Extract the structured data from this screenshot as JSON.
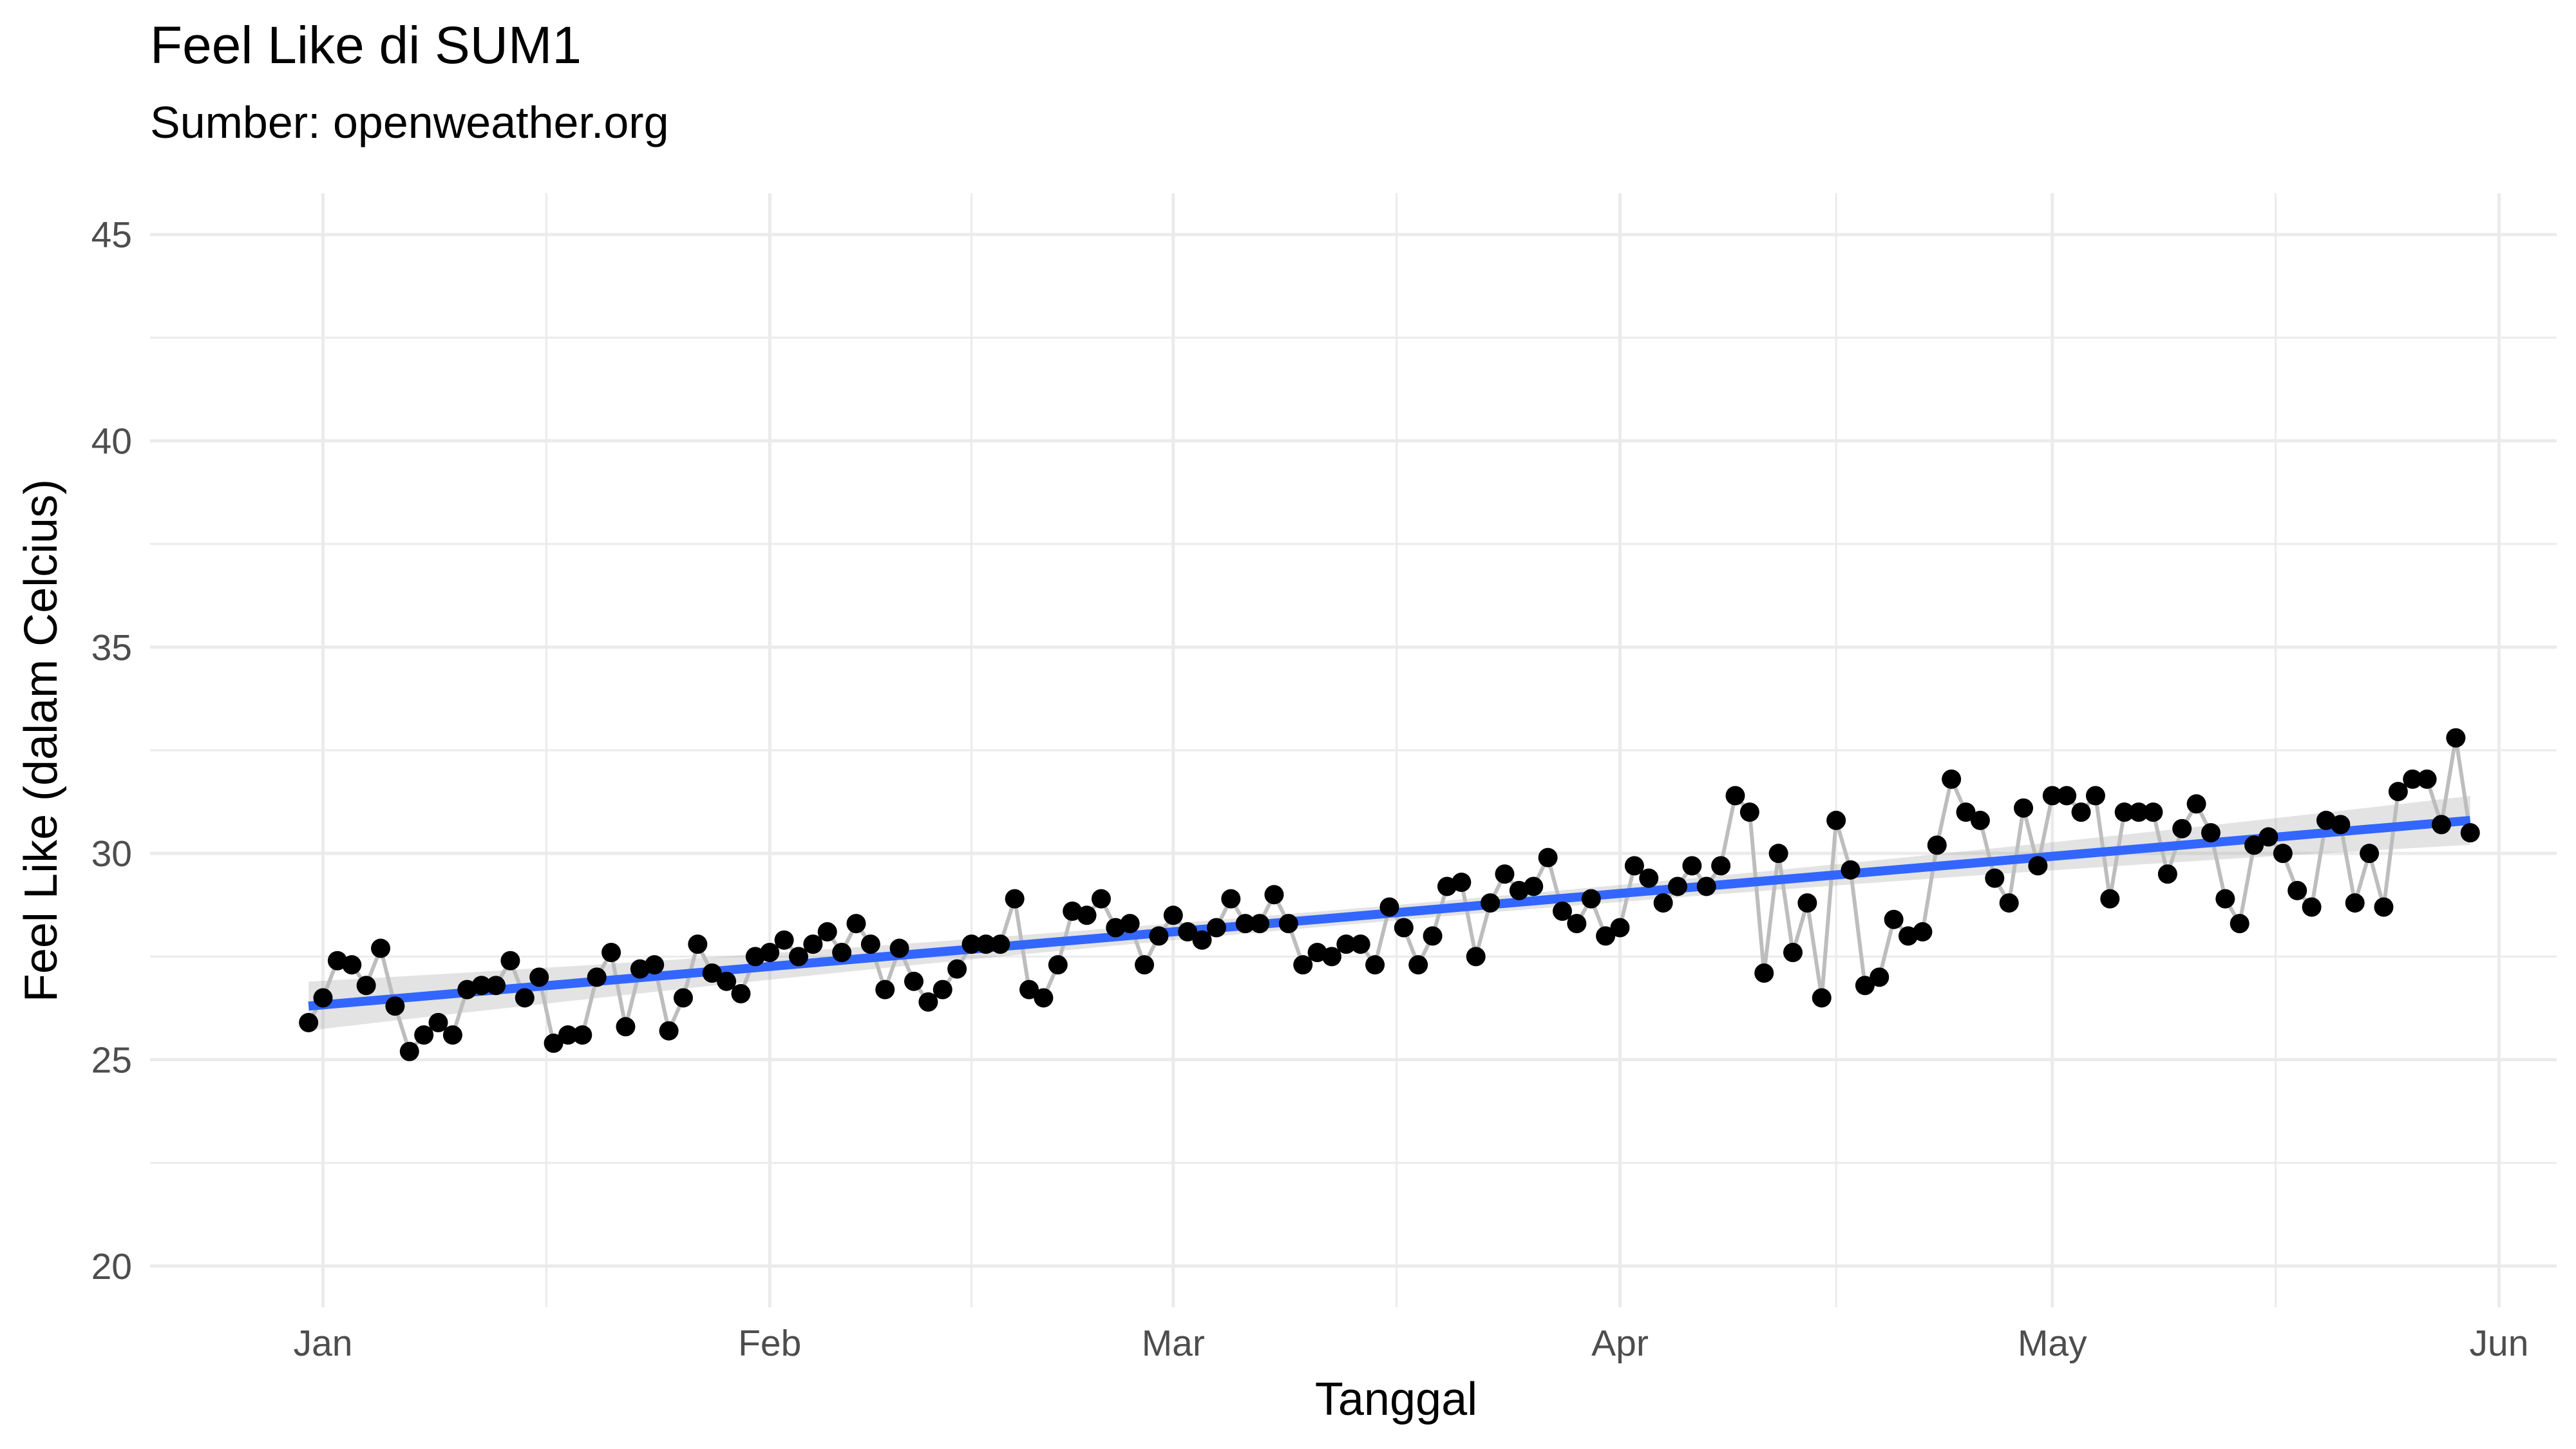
{
  "chart_data": {
    "type": "line",
    "title": "Feel Like di SUM1",
    "subtitle": "Sumber: openweather.org",
    "xlabel": "Tanggal",
    "ylabel": "Feel Like (dalam Celcius)",
    "x_start": "2022-12-31",
    "x_end": "2023-05-30",
    "xlim": [
      "2022-12-20",
      "2023-06-05"
    ],
    "ylim": [
      19,
      46
    ],
    "yticks": [
      20,
      25,
      30,
      35,
      40,
      45
    ],
    "xticks": [
      {
        "date": "2023-01-01",
        "label": "Jan"
      },
      {
        "date": "2023-02-01",
        "label": "Feb"
      },
      {
        "date": "2023-03-01",
        "label": "Mar"
      },
      {
        "date": "2023-04-01",
        "label": "Apr"
      },
      {
        "date": "2023-05-01",
        "label": "May"
      },
      {
        "date": "2023-06-01",
        "label": "Jun"
      }
    ],
    "grid": true,
    "series": [
      {
        "values": [
          25.9,
          26.5,
          27.4,
          27.3,
          26.8,
          27.7,
          26.3,
          25.2,
          25.6,
          25.9,
          25.6,
          26.7,
          26.8,
          26.8,
          27.4,
          26.5,
          27.0,
          25.4,
          25.6,
          25.6,
          27.0,
          27.6,
          25.8,
          27.2,
          27.3,
          25.7,
          26.5,
          27.8,
          27.1,
          26.9,
          26.6,
          27.5,
          27.6,
          27.9,
          27.5,
          27.8,
          28.1,
          27.6,
          28.3,
          27.8,
          26.7,
          27.7,
          26.9,
          26.4,
          26.7,
          27.2,
          27.8,
          27.8,
          27.8,
          28.9,
          26.7,
          26.5,
          27.3,
          28.6,
          28.5,
          28.9,
          28.2,
          28.3,
          27.3,
          28.0,
          28.5,
          28.1,
          27.9,
          28.2,
          28.9,
          28.3,
          28.3,
          29.0,
          28.3,
          27.3,
          27.6,
          27.5,
          27.8,
          27.8,
          27.3,
          28.7,
          28.2,
          27.3,
          28.0,
          29.2,
          29.3,
          27.5,
          28.8,
          29.5,
          29.1,
          29.2,
          29.9,
          28.6,
          28.3,
          28.9,
          28.0,
          28.2,
          29.7,
          29.4,
          28.8,
          29.2,
          29.7,
          29.2,
          29.7,
          31.4,
          31.0,
          27.1,
          30.0,
          27.6,
          28.8,
          26.5,
          30.8,
          29.6,
          26.8,
          27.0,
          28.4,
          28.0,
          28.1,
          30.2,
          31.8,
          31.0,
          30.8,
          29.4,
          28.8,
          31.1,
          29.7,
          31.4,
          31.4,
          31.0,
          31.4,
          28.9,
          31.0,
          31.0,
          31.0,
          29.5,
          30.6,
          31.2,
          30.5,
          28.9,
          28.3,
          30.2,
          30.4,
          30.0,
          29.1,
          28.7,
          30.8,
          30.7,
          28.8,
          30.0,
          28.7,
          31.5,
          31.8,
          31.8,
          30.7,
          32.8,
          30.5
        ]
      }
    ],
    "trend": {
      "start": 26.3,
      "end": 30.8
    },
    "colors": {
      "point": "#000000",
      "line": "#bdbdbd",
      "trend": "#3366ff",
      "band": "#999999",
      "grid": "#ebebeb"
    }
  }
}
